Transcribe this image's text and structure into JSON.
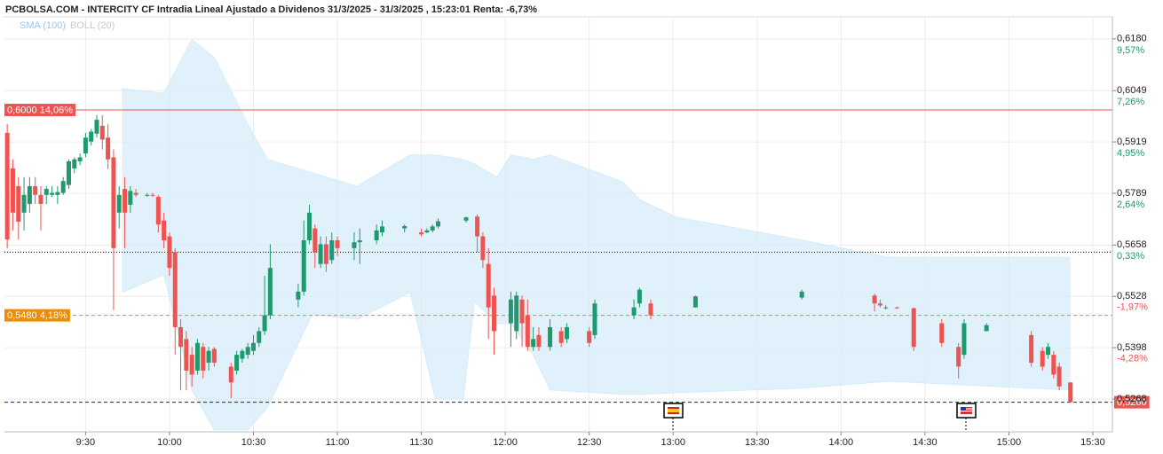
{
  "chart_data": {
    "type": "candlestick",
    "title": "PCBOLSA.COM - INTERCITY CF Intradia Lineal Ajustado a Dividenos 31/3/2025 - 31/3/2025 , 15:23:01 Renta: -6,73%",
    "up_color": "#1e9a6e",
    "down_color": "#ef5350",
    "xlim": [
      "9:01",
      "15:37"
    ],
    "xticks": [
      "9:30",
      "10:00",
      "10:30",
      "11:00",
      "11:30",
      "12:00",
      "12:30",
      "13:00",
      "13:30",
      "14:00",
      "14:30",
      "15:00",
      "15:30"
    ],
    "ylim": [
      0.5185,
      0.6238
    ],
    "yticks": [
      {
        "value": 0.618,
        "label": "0,6180"
      },
      {
        "value": 0.6049,
        "label": "0,6049"
      },
      {
        "value": 0.5919,
        "label": "0,5919"
      },
      {
        "value": 0.5789,
        "label": "0,5789"
      },
      {
        "value": 0.5658,
        "label": "0,5658"
      },
      {
        "value": 0.5528,
        "label": "0,5528"
      },
      {
        "value": 0.5398,
        "label": "0,5398"
      },
      {
        "value": 0.5268,
        "label": "0,5268"
      }
    ],
    "y2lim": [
      -8.07,
      10.6
    ],
    "y2ticks": [
      {
        "value": 9.57,
        "label": "9,57%"
      },
      {
        "value": 7.26,
        "label": "7,26%"
      },
      {
        "value": 4.95,
        "label": "4,95%"
      },
      {
        "value": 2.64,
        "label": "2,64%"
      },
      {
        "value": 0.33,
        "label": "0,33%"
      },
      {
        "value": -1.97,
        "label": "-1,97%"
      },
      {
        "value": -4.28,
        "label": "-4,28%"
      }
    ],
    "grid": true,
    "x": [
      "9:02",
      "9:04",
      "9:06",
      "9:08",
      "9:10",
      "9:12",
      "9:14",
      "9:16",
      "9:18",
      "9:20",
      "9:22",
      "9:24",
      "9:26",
      "9:28",
      "9:30",
      "9:32",
      "9:34",
      "9:36",
      "9:38",
      "9:40",
      "9:42",
      "9:44",
      "9:46",
      "9:48",
      "9:52",
      "9:54",
      "9:56",
      "9:58",
      "10:00",
      "10:02",
      "10:04",
      "10:06",
      "10:08",
      "10:10",
      "10:12",
      "10:14",
      "10:16",
      "10:22",
      "10:24",
      "10:26",
      "10:28",
      "10:30",
      "10:32",
      "10:34",
      "10:36",
      "10:46",
      "10:48",
      "10:50",
      "10:52",
      "10:54",
      "10:56",
      "10:58",
      "11:00",
      "11:06",
      "11:08",
      "11:14",
      "11:16",
      "11:24",
      "11:30",
      "11:32",
      "11:34",
      "11:36",
      "11:46",
      "11:50",
      "11:52",
      "11:54",
      "11:56",
      "12:02",
      "12:04",
      "12:06",
      "12:08",
      "12:10",
      "12:12",
      "12:16",
      "12:20",
      "12:22",
      "12:30",
      "12:32",
      "12:46",
      "12:48",
      "12:52",
      "13:08",
      "13:46",
      "14:12",
      "14:14",
      "14:16",
      "14:20",
      "14:26",
      "14:36",
      "14:42",
      "14:44",
      "14:52",
      "15:08",
      "15:12",
      "15:14",
      "15:16",
      "15:18",
      "15:22"
    ],
    "open": [
      0.5942,
      0.5852,
      0.5807,
      0.574,
      0.5762,
      0.5807,
      0.5785,
      0.5785,
      0.5785,
      0.5785,
      0.579,
      0.581,
      0.5852,
      0.587,
      0.589,
      0.592,
      0.594,
      0.596,
      0.593,
      0.588,
      0.574,
      0.58,
      0.576,
      0.579,
      0.5785,
      0.5785,
      0.578,
      0.572,
      0.568,
      0.564,
      0.545,
      0.542,
      0.538,
      0.534,
      0.54,
      0.536,
      0.5395,
      0.535,
      0.534,
      0.537,
      0.538,
      0.539,
      0.541,
      0.544,
      0.548,
      0.552,
      0.554,
      0.567,
      0.57,
      0.561,
      0.566,
      0.562,
      0.567,
      0.565,
      0.5665,
      0.567,
      0.569,
      0.57,
      0.569,
      0.569,
      0.5695,
      0.5705,
      0.572,
      0.573,
      0.568,
      0.561,
      0.553,
      0.546,
      0.544,
      0.552,
      0.548,
      0.54,
      0.543,
      0.54,
      0.544,
      0.542,
      0.544,
      0.543,
      0.548,
      0.551,
      0.551,
      0.55,
      0.5525,
      0.553,
      0.551,
      0.55,
      0.55,
      0.5498,
      0.546,
      0.54,
      0.538,
      0.544,
      0.543,
      0.539,
      0.538,
      0.538,
      0.535,
      0.531
    ],
    "high": [
      0.5964,
      0.5875,
      0.583,
      0.583,
      0.583,
      0.583,
      0.5807,
      0.5807,
      0.5807,
      0.5807,
      0.583,
      0.5875,
      0.588,
      0.589,
      0.5942,
      0.5952,
      0.5987,
      0.5987,
      0.5964,
      0.59,
      0.5807,
      0.583,
      0.5807,
      0.58,
      0.579,
      0.579,
      0.5785,
      0.574,
      0.569,
      0.565,
      0.547,
      0.544,
      0.54,
      0.542,
      0.541,
      0.54,
      0.54,
      0.536,
      0.539,
      0.5395,
      0.541,
      0.543,
      0.545,
      0.558,
      0.566,
      0.556,
      0.572,
      0.576,
      0.571,
      0.568,
      0.568,
      0.569,
      0.568,
      0.569,
      0.57,
      0.571,
      0.572,
      0.571,
      0.57,
      0.57,
      0.571,
      0.5725,
      0.573,
      0.5735,
      0.569,
      0.565,
      0.555,
      0.554,
      0.554,
      0.553,
      0.552,
      0.545,
      0.545,
      0.547,
      0.545,
      0.546,
      0.545,
      0.552,
      0.552,
      0.555,
      0.552,
      0.553,
      0.5545,
      0.5535,
      0.552,
      0.5505,
      0.5502,
      0.55,
      0.547,
      0.541,
      0.547,
      0.546,
      0.544,
      0.54,
      0.541,
      0.539,
      0.536,
      0.531
    ],
    "low": [
      0.565,
      0.5695,
      0.5672,
      0.5695,
      0.574,
      0.5762,
      0.5695,
      0.5762,
      0.578,
      0.5762,
      0.5785,
      0.58,
      0.584,
      0.586,
      0.588,
      0.591,
      0.593,
      0.59,
      0.585,
      0.5493,
      0.57,
      0.565,
      0.574,
      0.578,
      0.578,
      0.578,
      0.569,
      0.565,
      0.558,
      0.538,
      0.529,
      0.529,
      0.53,
      0.533,
      0.532,
      0.534,
      0.535,
      0.527,
      0.533,
      0.536,
      0.537,
      0.538,
      0.54,
      0.543,
      0.547,
      0.55,
      0.553,
      0.566,
      0.56,
      0.56,
      0.559,
      0.561,
      0.563,
      0.562,
      0.561,
      0.566,
      0.568,
      0.569,
      0.568,
      0.5688,
      0.569,
      0.57,
      0.5715,
      0.564,
      0.56,
      0.542,
      0.538,
      0.54,
      0.542,
      0.54,
      0.539,
      0.539,
      0.539,
      0.539,
      0.54,
      0.541,
      0.54,
      0.542,
      0.547,
      0.55,
      0.547,
      0.55,
      0.552,
      0.549,
      0.55,
      0.5495,
      0.5496,
      0.539,
      0.54,
      0.532,
      0.537,
      0.544,
      0.535,
      0.534,
      0.537,
      0.532,
      0.529,
      0.526
    ],
    "close": [
      0.5672,
      0.574,
      0.5717,
      0.5785,
      0.5807,
      0.5785,
      0.5762,
      0.58,
      0.579,
      0.5792,
      0.582,
      0.587,
      0.5875,
      0.588,
      0.593,
      0.5945,
      0.5975,
      0.5925,
      0.5875,
      0.565,
      0.5785,
      0.574,
      0.5795,
      0.5785,
      0.5785,
      0.5783,
      0.571,
      0.567,
      0.56,
      0.545,
      0.54,
      0.534,
      0.533,
      0.541,
      0.534,
      0.539,
      0.536,
      0.531,
      0.538,
      0.539,
      0.54,
      0.541,
      0.544,
      0.548,
      0.56,
      0.554,
      0.567,
      0.574,
      0.564,
      0.566,
      0.561,
      0.567,
      0.565,
      0.5665,
      0.567,
      0.5695,
      0.5705,
      0.5706,
      0.5685,
      0.5695,
      0.5705,
      0.5718,
      0.5728,
      0.568,
      0.562,
      0.55,
      0.544,
      0.552,
      0.553,
      0.546,
      0.54,
      0.542,
      0.54,
      0.545,
      0.541,
      0.545,
      0.541,
      0.551,
      0.55,
      0.5545,
      0.548,
      0.5528,
      0.554,
      0.551,
      0.5505,
      0.55,
      0.5498,
      0.54,
      0.541,
      0.535,
      0.546,
      0.5455,
      0.536,
      0.535,
      0.54,
      0.533,
      0.53,
      0.526
    ],
    "indicators": [
      {
        "name": "SMA (100)",
        "color": "#90caf9"
      },
      {
        "name": "BOLL (20)",
        "color": "#c8c8c8",
        "fill": "#d6ecfa",
        "x": [
          "9:43",
          "9:58",
          "10:08",
          "10:16",
          "10:28",
          "10:35",
          "10:51",
          "11:07",
          "11:26",
          "11:35",
          "11:45",
          "11:49",
          "11:57",
          "12:02",
          "12:10",
          "12:16",
          "12:42",
          "12:48",
          "13:01",
          "13:45",
          "14:17",
          "15:22"
        ],
        "upper": [
          0.6054,
          0.6043,
          0.6178,
          0.6133,
          0.5964,
          0.5875,
          0.5841,
          0.5807,
          0.5886,
          0.5886,
          0.5875,
          0.5863,
          0.583,
          0.5886,
          0.5875,
          0.5886,
          0.5818,
          0.5773,
          0.5729,
          0.5672,
          0.5627,
          0.5627
        ],
        "lower": [
          0.5538,
          0.5583,
          0.5291,
          0.519,
          0.519,
          0.5246,
          0.5482,
          0.547,
          0.5538,
          0.5268,
          0.5268,
          0.5515,
          0.5459,
          0.5459,
          0.538,
          0.5291,
          0.528,
          0.528,
          0.5284,
          0.5295,
          0.5313,
          0.5291
        ]
      }
    ],
    "price_lines": [
      {
        "value": 0.6,
        "label": "0,6000  14,06%",
        "color": "#ef5350",
        "style": "solid",
        "label_side": "left"
      },
      {
        "value": 0.548,
        "label": "0,5480  4,18%",
        "color": "#f08c00",
        "style": "dashed",
        "label_side": "left"
      },
      {
        "value": 0.564,
        "color": "#000000",
        "style": "dotted"
      },
      {
        "value": 0.526,
        "label": "0,5260",
        "color": "#1a237e",
        "style": "dashed",
        "label_side": "right",
        "label_color": "#ef5350"
      }
    ]
  }
}
